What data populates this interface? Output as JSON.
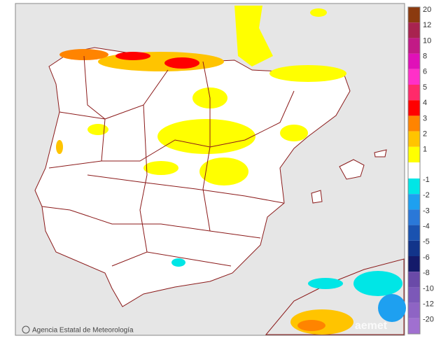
{
  "legend": {
    "entries": [
      {
        "label": "20",
        "color": "#8b3a0f"
      },
      {
        "label": "12",
        "color": "#a8234f"
      },
      {
        "label": "10",
        "color": "#c21a86"
      },
      {
        "label": "8",
        "color": "#e010b8"
      },
      {
        "label": "6",
        "color": "#ff30c8"
      },
      {
        "label": "5",
        "color": "#ff2a6a"
      },
      {
        "label": "4",
        "color": "#ff0000"
      },
      {
        "label": "3",
        "color": "#ff8400"
      },
      {
        "label": "2",
        "color": "#ffc400"
      },
      {
        "label": "1",
        "color": "#ffff00"
      },
      {
        "label": "-1",
        "color": "#00e6e6"
      },
      {
        "label": "-2",
        "color": "#1ea0f0"
      },
      {
        "label": "-3",
        "color": "#2a78d8"
      },
      {
        "label": "-4",
        "color": "#1a52b0"
      },
      {
        "label": "-5",
        "color": "#12348a"
      },
      {
        "label": "-6",
        "color": "#141a6a"
      },
      {
        "label": "-8",
        "color": "#6a4aa8"
      },
      {
        "label": "-10",
        "color": "#7c58b8"
      },
      {
        "label": "-12",
        "color": "#8e64c4"
      },
      {
        "label": "-20",
        "color": "#a070d0"
      }
    ]
  },
  "credit": "Agencia Estatal de Meteorología",
  "watermark": "aemet"
}
